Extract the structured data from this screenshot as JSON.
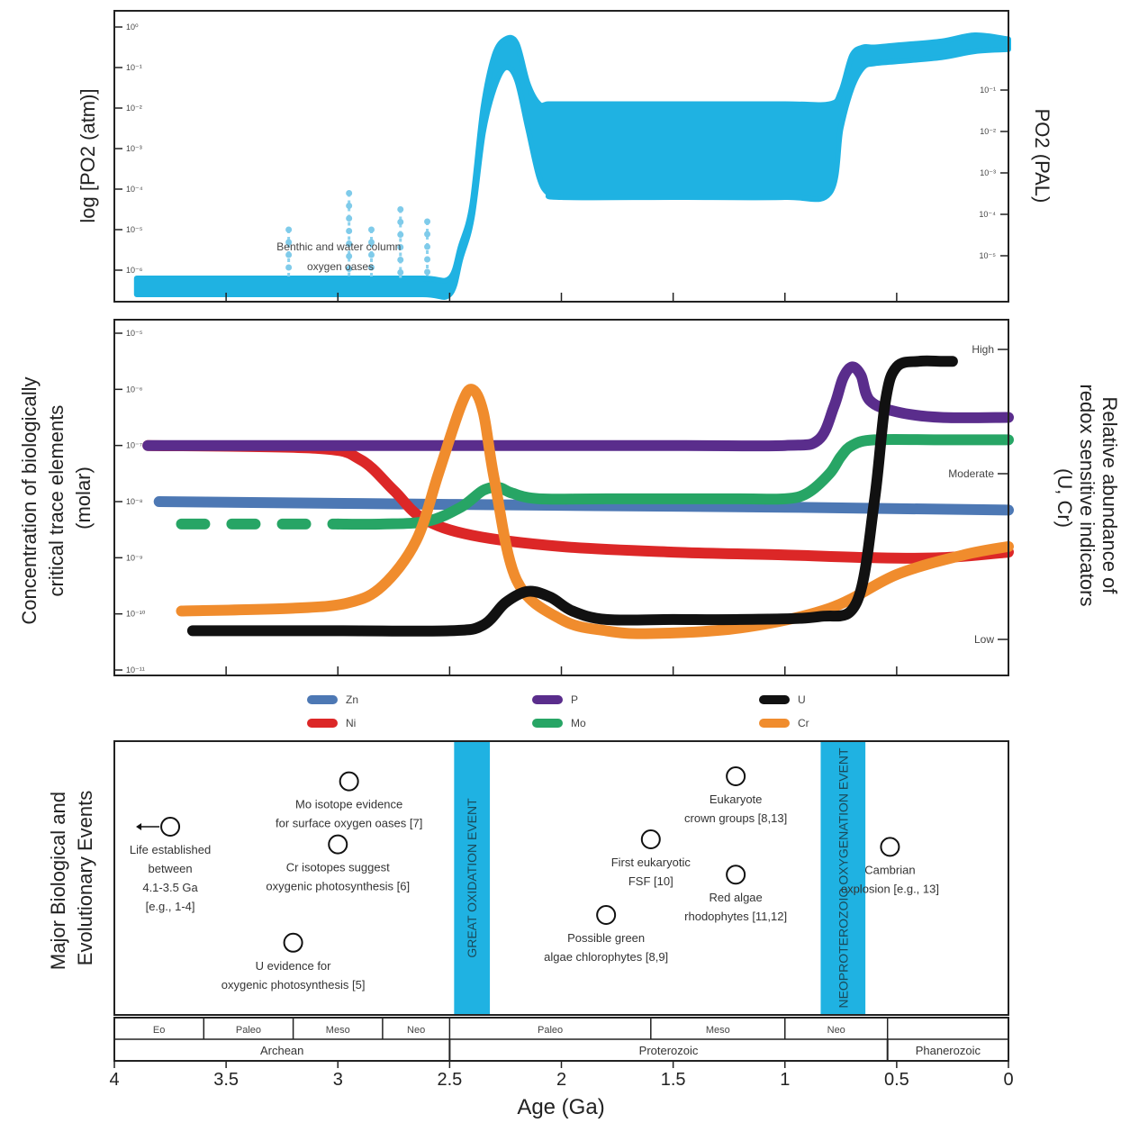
{
  "colors": {
    "oxygen": "#1fb2e2",
    "Zn": "#4d78b4",
    "Ni": "#dc2727",
    "P": "#5a2d8c",
    "Mo": "#27a565",
    "U": "#111111",
    "Cr": "#f08c2d",
    "band": "#1fb2e2"
  },
  "chart_data": [
    {
      "type": "area",
      "panel": "atmospheric-oxygen",
      "ylabel_left": "log [PO2 (atm)]",
      "ylabel_right": "PO2 (PAL)",
      "left_ticks": [
        "10⁰",
        "10⁻¹",
        "10⁻²",
        "10⁻³",
        "10⁻⁴",
        "10⁻⁵",
        "10⁻⁶"
      ],
      "right_ticks": [
        "10⁻¹",
        "10⁻²",
        "10⁻³",
        "10⁻⁴",
        "10⁻⁵"
      ],
      "xlim": [
        4,
        0
      ],
      "annotation": "Benthic and water column oxygen oases",
      "series": [
        {
          "x": [
            3.9,
            3.5,
            3.0,
            2.62,
            2.5,
            2.45,
            2.4,
            2.35,
            2.3,
            2.25,
            2.2,
            2.15,
            2.1,
            2.06,
            2.0,
            1.5,
            1.0,
            0.8,
            0.75,
            0.7,
            0.65,
            0.6,
            0.5,
            0.3,
            0.15,
            0.0
          ],
          "upper": [
            -6.2,
            -6.2,
            -6.2,
            -6.2,
            -6.2,
            -5.4,
            -4.4,
            -2.0,
            -0.7,
            -0.3,
            -0.4,
            -1.4,
            -1.9,
            -1.9,
            -1.9,
            -1.9,
            -1.9,
            -1.9,
            -1.6,
            -0.7,
            -0.5,
            -0.5,
            -0.45,
            -0.35,
            -0.2,
            -0.3
          ],
          "lower": [
            -6.6,
            -6.6,
            -6.6,
            -6.6,
            -6.6,
            -5.7,
            -4.7,
            -2.6,
            -1.5,
            -1.0,
            -1.3,
            -2.5,
            -3.7,
            -4.1,
            -4.2,
            -4.2,
            -4.2,
            -4.1,
            -2.5,
            -1.5,
            -1.0,
            -0.9,
            -0.85,
            -0.75,
            -0.6,
            -0.55
          ]
        },
        {
          "name": "oases",
          "x": [
            3.22,
            2.95,
            2.85,
            2.72,
            2.6
          ],
          "top": [
            -5.0,
            -4.1,
            -5.0,
            -4.5,
            -4.8
          ]
        }
      ]
    },
    {
      "type": "line",
      "panel": "trace-elements",
      "ylabel_left": "Concentration of biologically critical trace elements (molar)",
      "ylabel_right": "Relative abundance of redox sensitive indicators (U, Cr)",
      "left_ticks": [
        "10⁻⁵",
        "10⁻⁶",
        "10⁻⁷",
        "10⁻⁸",
        "10⁻⁹",
        "10⁻¹⁰",
        "10⁻¹¹"
      ],
      "right_ticks": [
        "High",
        "Moderate",
        "Low"
      ],
      "xlim": [
        4,
        0
      ],
      "series": [
        {
          "name": "Zn",
          "x": [
            3.8,
            2.5,
            1.0,
            0.0
          ],
          "y": [
            -8.0,
            -8.05,
            -8.1,
            -8.15
          ]
        },
        {
          "name": "Ni",
          "x": [
            3.85,
            3.1,
            2.9,
            2.75,
            2.62,
            2.4,
            2.0,
            1.5,
            1.0,
            0.6,
            0.3,
            0.0
          ],
          "y": [
            -7.0,
            -7.05,
            -7.25,
            -7.8,
            -8.3,
            -8.6,
            -8.8,
            -8.9,
            -8.95,
            -9.0,
            -9.0,
            -8.9
          ]
        },
        {
          "name": "P",
          "x": [
            3.85,
            2.5,
            1.5,
            1.0,
            0.85,
            0.78,
            0.74,
            0.7,
            0.66,
            0.62,
            0.5,
            0.3,
            0.0
          ],
          "y": [
            -7.0,
            -7.0,
            -7.0,
            -7.0,
            -6.9,
            -6.3,
            -5.8,
            -5.6,
            -5.75,
            -6.2,
            -6.4,
            -6.5,
            -6.5
          ]
        },
        {
          "name": "Mo",
          "x": [
            3.7,
            3.0,
            2.8,
            2.6,
            2.45,
            2.35,
            2.28,
            2.22,
            2.1,
            1.8,
            1.2,
            1.0,
            0.9,
            0.8,
            0.75,
            0.7,
            0.6,
            0.3,
            0.0
          ],
          "y": [
            -8.4,
            -8.4,
            -8.4,
            -8.35,
            -8.1,
            -7.8,
            -7.75,
            -7.85,
            -7.95,
            -7.95,
            -7.95,
            -7.95,
            -7.85,
            -7.5,
            -7.2,
            -7.0,
            -6.9,
            -6.9,
            -6.9
          ]
        },
        {
          "name": "U",
          "x": [
            3.65,
            3.0,
            2.5,
            2.35,
            2.25,
            2.15,
            2.05,
            1.95,
            1.8,
            1.5,
            1.2,
            0.85,
            0.68,
            0.6,
            0.55,
            0.5,
            0.4,
            0.3,
            0.25
          ],
          "y": [
            -10.3,
            -10.3,
            -10.3,
            -10.2,
            -9.8,
            -9.6,
            -9.7,
            -9.95,
            -10.1,
            -10.1,
            -10.1,
            -10.05,
            -9.8,
            -8.0,
            -6.2,
            -5.6,
            -5.5,
            -5.5,
            -5.5
          ]
        },
        {
          "name": "Cr",
          "x": [
            3.7,
            3.2,
            2.95,
            2.8,
            2.65,
            2.55,
            2.45,
            2.4,
            2.35,
            2.3,
            2.2,
            2.0,
            1.8,
            1.6,
            1.2,
            0.8,
            0.5,
            0.2,
            0.0
          ],
          "y": [
            -9.95,
            -9.9,
            -9.8,
            -9.5,
            -8.7,
            -7.5,
            -6.3,
            -6.0,
            -6.4,
            -7.6,
            -9.4,
            -10.1,
            -10.3,
            -10.35,
            -10.25,
            -9.9,
            -9.3,
            -8.95,
            -8.8
          ]
        }
      ]
    }
  ],
  "legend": [
    {
      "key": "Zn",
      "label": "Zn",
      "color": "#4d78b4"
    },
    {
      "key": "P",
      "label": "P",
      "color": "#5a2d8c"
    },
    {
      "key": "U",
      "label": "U",
      "color": "#111111"
    },
    {
      "key": "Ni",
      "label": "Ni",
      "color": "#dc2727"
    },
    {
      "key": "Mo",
      "label": "Mo",
      "color": "#27a565"
    },
    {
      "key": "Cr",
      "label": "Cr",
      "color": "#f08c2d"
    }
  ],
  "events": {
    "ylabel": "Major Biological and Evolutionary Events",
    "bands": [
      "GREAT OXIDATION EVENT",
      "NEOPROTEROZOIC OXYGENATION EVENT"
    ],
    "items": [
      {
        "age": 3.75,
        "slot": 0.25,
        "lines": [
          "Life established",
          "between",
          "4.1-3.5 Ga",
          "[e.g., 1-4]"
        ]
      },
      {
        "age": 2.95,
        "slot": 0.07,
        "lines": [
          "Mo isotope evidence",
          "for surface oxygen oases [7]"
        ]
      },
      {
        "age": 3.0,
        "slot": 0.32,
        "lines": [
          "Cr isotopes suggest",
          "oxygenic photosynthesis [6]"
        ]
      },
      {
        "age": 3.2,
        "slot": 0.71,
        "lines": [
          "U evidence for",
          "oxygenic photosynthesis [5]"
        ]
      },
      {
        "age": 1.6,
        "slot": 0.3,
        "lines": [
          "First eukaryotic",
          "FSF [10]"
        ]
      },
      {
        "age": 1.8,
        "slot": 0.6,
        "lines": [
          "Possible green",
          "algae chlorophytes [8,9]"
        ]
      },
      {
        "age": 1.22,
        "slot": 0.05,
        "lines": [
          "Eukaryote",
          "crown groups [8,13]"
        ]
      },
      {
        "age": 1.22,
        "slot": 0.44,
        "lines": [
          "Red algae",
          "rhodophytes [11,12]"
        ]
      },
      {
        "age": 0.53,
        "slot": 0.33,
        "lines": [
          "Cambrian",
          "explosion [e.g., 13]"
        ]
      }
    ]
  },
  "timescale": {
    "eras": [
      {
        "label": "Eo",
        "from": 4.0,
        "to": 3.6
      },
      {
        "label": "Paleo",
        "from": 3.6,
        "to": 3.2
      },
      {
        "label": "Meso",
        "from": 3.2,
        "to": 2.8
      },
      {
        "label": "Neo",
        "from": 2.8,
        "to": 2.5
      },
      {
        "label": "Paleo",
        "from": 2.5,
        "to": 1.6
      },
      {
        "label": "Meso",
        "from": 1.6,
        "to": 1.0
      },
      {
        "label": "Neo",
        "from": 1.0,
        "to": 0.541
      },
      {
        "label": "",
        "from": 0.541,
        "to": 0.0
      }
    ],
    "eons": [
      {
        "label": "Archean",
        "from": 4.0,
        "to": 2.5
      },
      {
        "label": "Proterozoic",
        "from": 2.5,
        "to": 0.541
      },
      {
        "label": "Phanerozoic",
        "from": 0.541,
        "to": 0.0
      }
    ]
  },
  "xaxis": {
    "title": "Age (Ga)",
    "ticks": [
      "4",
      "3.5",
      "3",
      "2.5",
      "2",
      "1.5",
      "1",
      "0.5",
      "0"
    ]
  }
}
